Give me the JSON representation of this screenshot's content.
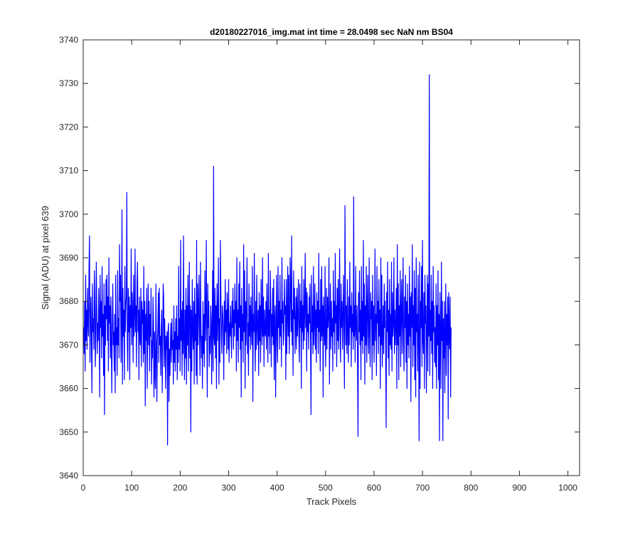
{
  "chart_data": {
    "type": "line",
    "title": "d20180227016_img.mat int time = 28.0498 sec  NaN nm BS04",
    "xlabel": "Track Pixels",
    "ylabel": "Signal (ADU) at pixel 639",
    "xlim": [
      0,
      1024
    ],
    "ylim": [
      3640,
      3740
    ],
    "xticks": [
      0,
      100,
      200,
      300,
      400,
      500,
      600,
      700,
      800,
      900,
      1000
    ],
    "yticks": [
      3640,
      3650,
      3660,
      3670,
      3680,
      3690,
      3700,
      3710,
      3720,
      3730,
      3740
    ],
    "grid": false,
    "line_color": "#0000ff",
    "series": [
      {
        "x_start": 1,
        "x_step": 1,
        "y": [
          3674,
          3668,
          3680,
          3664,
          3686,
          3671,
          3678,
          3669,
          3683,
          3675,
          3672,
          3688,
          3695,
          3666,
          3677,
          3681,
          3670,
          3659,
          3684,
          3673,
          3676,
          3669,
          3687,
          3680,
          3665,
          3672,
          3689,
          3678,
          3668,
          3675,
          3671,
          3683,
          3677,
          3658,
          3686,
          3674,
          3680,
          3667,
          3688,
          3672,
          3677,
          3663,
          3684,
          3654,
          3679,
          3670,
          3685,
          3676,
          3686,
          3671,
          3681,
          3664,
          3690,
          3675,
          3679,
          3667,
          3681,
          3670,
          3659,
          3675,
          3684,
          3670,
          3673,
          3664,
          3677,
          3659,
          3686,
          3670,
          3674,
          3663,
          3687,
          3670,
          3676,
          3667,
          3693,
          3680,
          3686,
          3666,
          3675,
          3701,
          3661,
          3683,
          3672,
          3678,
          3662,
          3688,
          3673,
          3679,
          3681,
          3705,
          3670,
          3664,
          3683,
          3673,
          3681,
          3662,
          3679,
          3674,
          3692,
          3670,
          3682,
          3677,
          3666,
          3686,
          3672,
          3677,
          3692,
          3673,
          3679,
          3665,
          3684,
          3689,
          3673,
          3678,
          3662,
          3681,
          3672,
          3670,
          3683,
          3665,
          3680,
          3675,
          3678,
          3666,
          3688,
          3668,
          3680,
          3656,
          3677,
          3671,
          3683,
          3660,
          3673,
          3684,
          3670,
          3680,
          3664,
          3677,
          3672,
          3683,
          3661,
          3671,
          3667,
          3681,
          3675,
          3658,
          3673,
          3663,
          3660,
          3684,
          3669,
          3657,
          3671,
          3674,
          3682,
          3666,
          3683,
          3670,
          3672,
          3663,
          3674,
          3678,
          3659,
          3670,
          3684,
          3681,
          3665,
          3676,
          3671,
          3660,
          3672,
          3669,
          3673,
          3647,
          3673,
          3675,
          3657,
          3669,
          3663,
          3671,
          3675,
          3666,
          3676,
          3669,
          3671,
          3661,
          3679,
          3666,
          3673,
          3664,
          3676,
          3669,
          3679,
          3662,
          3672,
          3666,
          3688,
          3669,
          3676,
          3664,
          3694,
          3671,
          3678,
          3663,
          3680,
          3668,
          3695,
          3671,
          3662,
          3678,
          3667,
          3683,
          3661,
          3679,
          3670,
          3686,
          3664,
          3675,
          3689,
          3667,
          3679,
          3650,
          3678,
          3664,
          3685,
          3673,
          3669,
          3680,
          3661,
          3683,
          3671,
          3677,
          3663,
          3694,
          3661,
          3684,
          3670,
          3678,
          3686,
          3672,
          3663,
          3689,
          3674,
          3667,
          3672,
          3660,
          3680,
          3668,
          3677,
          3665,
          3687,
          3671,
          3676,
          3694,
          3672,
          3658,
          3684,
          3674,
          3680,
          3665,
          3672,
          3668,
          3679,
          3676,
          3661,
          3674,
          3687,
          3664,
          3711,
          3672,
          3670,
          3683,
          3667,
          3679,
          3660,
          3684,
          3671,
          3677,
          3690,
          3661,
          3676,
          3666,
          3694,
          3683,
          3672,
          3668,
          3679,
          3677,
          3673,
          3662,
          3680,
          3670,
          3685,
          3673,
          3678,
          3668,
          3682,
          3677,
          3669,
          3685,
          3666,
          3675,
          3672,
          3679,
          3673,
          3667,
          3680,
          3674,
          3683,
          3669,
          3678,
          3672,
          3684,
          3675,
          3680,
          3664,
          3690,
          3671,
          3678,
          3666,
          3684,
          3674,
          3689,
          3669,
          3679,
          3658,
          3683,
          3671,
          3677,
          3666,
          3693,
          3673,
          3687,
          3660,
          3680,
          3670,
          3678,
          3690,
          3668,
          3675,
          3663,
          3684,
          3672,
          3679,
          3669,
          3681,
          3674,
          3670,
          3688,
          3657,
          3677,
          3673,
          3691,
          3672,
          3664,
          3680,
          3669,
          3686,
          3674,
          3670,
          3678,
          3663,
          3682,
          3671,
          3679,
          3666,
          3685,
          3675,
          3670,
          3690,
          3672,
          3681,
          3665,
          3678,
          3673,
          3672,
          3680,
          3669,
          3684,
          3675,
          3666,
          3691,
          3672,
          3678,
          3668,
          3687,
          3680,
          3665,
          3677,
          3672,
          3683,
          3670,
          3685,
          3662,
          3676,
          3679,
          3658,
          3673,
          3686,
          3671,
          3666,
          3688,
          3674,
          3680,
          3669,
          3686,
          3672,
          3678,
          3665,
          3690,
          3675,
          3680,
          3670,
          3673,
          3685,
          3677,
          3679,
          3662,
          3685,
          3668,
          3676,
          3688,
          3672,
          3686,
          3668,
          3674,
          3690,
          3682,
          3673,
          3695,
          3670,
          3678,
          3663,
          3687,
          3676,
          3683,
          3668,
          3675,
          3681,
          3669,
          3683,
          3672,
          3677,
          3685,
          3671,
          3666,
          3684,
          3674,
          3680,
          3660,
          3688,
          3673,
          3679,
          3669,
          3685,
          3671,
          3678,
          3691,
          3674,
          3683,
          3664,
          3682,
          3673,
          3677,
          3669,
          3681,
          3675,
          3684,
          3670,
          3654,
          3686,
          3673,
          3679,
          3668,
          3688,
          3670,
          3675,
          3684,
          3669,
          3678,
          3666,
          3682,
          3674,
          3680,
          3668,
          3691,
          3673,
          3678,
          3664,
          3685,
          3671,
          3688,
          3672,
          3679,
          3658,
          3681,
          3675,
          3670,
          3688,
          3665,
          3672,
          3683,
          3669,
          3681,
          3674,
          3677,
          3690,
          3661,
          3675,
          3684,
          3669,
          3680,
          3672,
          3676,
          3664,
          3687,
          3673,
          3680,
          3668,
          3691,
          3675,
          3679,
          3665,
          3683,
          3671,
          3685,
          3669,
          3678,
          3692,
          3672,
          3666,
          3684,
          3674,
          3680,
          3669,
          3677,
          3686,
          3671,
          3660,
          3702,
          3680,
          3670,
          3679,
          3668,
          3685,
          3673,
          3666,
          3681,
          3670,
          3689,
          3674,
          3679,
          3665,
          3682,
          3673,
          3677,
          3669,
          3704,
          3672,
          3679,
          3666,
          3688,
          3674,
          3671,
          3679,
          3665,
          3649,
          3682,
          3673,
          3687,
          3670,
          3678,
          3662,
          3688,
          3671,
          3680,
          3668,
          3694,
          3672,
          3684,
          3661,
          3679,
          3670,
          3688,
          3666,
          3677,
          3686,
          3672,
          3668,
          3690,
          3673,
          3665,
          3682,
          3676,
          3680,
          3662,
          3686,
          3670,
          3679,
          3666,
          3674,
          3692,
          3671,
          3677,
          3663,
          3688,
          3675,
          3680,
          3668,
          3685,
          3672,
          3678,
          3660,
          3690,
          3670,
          3686,
          3665,
          3672,
          3679,
          3668,
          3684,
          3674,
          3680,
          3670,
          3651,
          3682,
          3673,
          3689,
          3667,
          3678,
          3663,
          3685,
          3670,
          3677,
          3669,
          3689,
          3664,
          3682,
          3672,
          3675,
          3690,
          3668,
          3678,
          3670,
          3675,
          3683,
          3660,
          3693,
          3670,
          3684,
          3662,
          3679,
          3672,
          3687,
          3665,
          3678,
          3685,
          3668,
          3676,
          3690,
          3670,
          3664,
          3681,
          3674,
          3686,
          3666,
          3680,
          3660,
          3684,
          3670,
          3677,
          3667,
          3688,
          3672,
          3681,
          3657,
          3682,
          3674,
          3693,
          3665,
          3679,
          3670,
          3687,
          3662,
          3683,
          3658,
          3690,
          3673,
          3677,
          3664,
          3686,
          3671,
          3648,
          3689,
          3660,
          3680,
          3674,
          3688,
          3665,
          3694,
          3671,
          3668,
          3682,
          3660,
          3686,
          3675,
          3679,
          3659,
          3674,
          3686,
          3664,
          3684,
          3672,
          3732,
          3663,
          3678,
          3671,
          3686,
          3668,
          3680,
          3660,
          3688,
          3673,
          3679,
          3666,
          3674,
          3665,
          3684,
          3660,
          3679,
          3670,
          3687,
          3662,
          3677,
          3648,
          3682,
          3672,
          3660,
          3689,
          3671,
          3680,
          3648,
          3676,
          3667,
          3680,
          3659,
          3673,
          3684,
          3663,
          3677,
          3670,
          3681,
          3653,
          3682,
          3672,
          3669,
          3681,
          3658,
          3674
        ]
      }
    ]
  }
}
